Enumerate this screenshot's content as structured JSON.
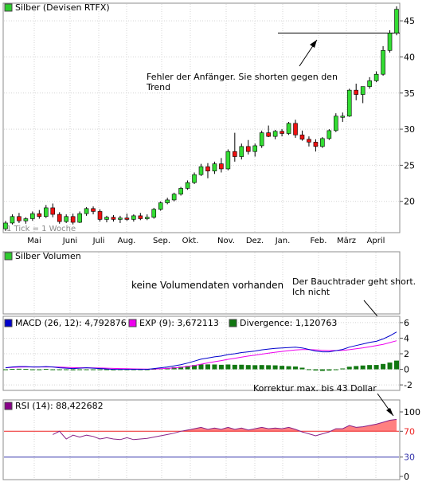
{
  "price_panel": {
    "legend_label": "Silber (Devisen RTFX)",
    "legend_color": "#2ecc2e",
    "tick_note": "1 Tick = 1 Woche",
    "y_ticks": [
      "45",
      "40",
      "35",
      "30",
      "25",
      "20"
    ],
    "annotation": "Fehler der Anfänger. Sie shorten gegen den Trend"
  },
  "volume_panel": {
    "legend_label": "Silber Volumen",
    "legend_color": "#2ecc2e",
    "no_data_text": "keine Volumendaten vorhanden",
    "annotation": "Der Bauchtrader geht short. Ich nicht"
  },
  "macd_panel": {
    "legend": [
      {
        "label": "MACD (26, 12): 4,792876",
        "color": "#0000cc"
      },
      {
        "label": "EXP (9): 3,672113",
        "color": "#ee00ee"
      },
      {
        "label": "Divergence: 1,120763",
        "color": "#117711"
      }
    ],
    "y_ticks": [
      "6",
      "4",
      "2",
      "0",
      "-2"
    ]
  },
  "rsi_panel": {
    "legend_label": "RSI (14): 88,422682",
    "legend_color": "#880088",
    "annotation": "Korrektur max. bis 43 Dollar",
    "y_ticks": [
      "100",
      "70",
      "30",
      "0"
    ]
  },
  "x_axis": {
    "months": [
      "Mai",
      "Juni",
      "Juli",
      "Aug.",
      "Sep.",
      "Okt.",
      "Nov.",
      "Dez.",
      "Jan.",
      "Feb.",
      "März",
      "April"
    ]
  },
  "chart_data": {
    "type": "candlestick",
    "periodicity": "weekly",
    "y_range": [
      16,
      47
    ],
    "colors": {
      "up": "#33dd33",
      "down": "#ee1111"
    },
    "candles": [
      {
        "o": 16.2,
        "h": 17.3,
        "l": 15.9,
        "c": 17.0
      },
      {
        "o": 17.0,
        "h": 18.2,
        "l": 16.8,
        "c": 17.9
      },
      {
        "o": 17.9,
        "h": 18.4,
        "l": 17.0,
        "c": 17.3
      },
      {
        "o": 17.3,
        "h": 17.8,
        "l": 16.9,
        "c": 17.6
      },
      {
        "o": 17.6,
        "h": 18.6,
        "l": 17.3,
        "c": 18.3
      },
      {
        "o": 18.3,
        "h": 18.8,
        "l": 17.6,
        "c": 17.9
      },
      {
        "o": 17.9,
        "h": 19.5,
        "l": 17.7,
        "c": 19.1
      },
      {
        "o": 19.1,
        "h": 19.7,
        "l": 17.8,
        "c": 18.2
      },
      {
        "o": 18.2,
        "h": 18.5,
        "l": 16.9,
        "c": 17.2
      },
      {
        "o": 17.2,
        "h": 18.2,
        "l": 17.0,
        "c": 17.9
      },
      {
        "o": 17.9,
        "h": 18.3,
        "l": 16.8,
        "c": 17.1
      },
      {
        "o": 17.1,
        "h": 18.6,
        "l": 17.0,
        "c": 18.3
      },
      {
        "o": 18.3,
        "h": 19.2,
        "l": 18.0,
        "c": 19.0
      },
      {
        "o": 19.0,
        "h": 19.3,
        "l": 18.2,
        "c": 18.6
      },
      {
        "o": 18.6,
        "h": 18.9,
        "l": 17.2,
        "c": 17.5
      },
      {
        "o": 17.5,
        "h": 18.0,
        "l": 17.1,
        "c": 17.8
      },
      {
        "o": 17.8,
        "h": 18.1,
        "l": 17.2,
        "c": 17.5
      },
      {
        "o": 17.5,
        "h": 18.0,
        "l": 17.0,
        "c": 17.7
      },
      {
        "o": 17.7,
        "h": 18.3,
        "l": 17.3,
        "c": 17.5
      },
      {
        "o": 17.5,
        "h": 18.2,
        "l": 17.2,
        "c": 18.0
      },
      {
        "o": 18.0,
        "h": 18.4,
        "l": 17.4,
        "c": 17.6
      },
      {
        "o": 17.6,
        "h": 18.2,
        "l": 17.4,
        "c": 17.8
      },
      {
        "o": 17.8,
        "h": 19.1,
        "l": 17.6,
        "c": 18.9
      },
      {
        "o": 18.9,
        "h": 20.0,
        "l": 18.7,
        "c": 19.8
      },
      {
        "o": 19.8,
        "h": 20.5,
        "l": 19.6,
        "c": 20.2
      },
      {
        "o": 20.2,
        "h": 21.2,
        "l": 20.0,
        "c": 21.0
      },
      {
        "o": 21.0,
        "h": 22.0,
        "l": 20.8,
        "c": 21.8
      },
      {
        "o": 21.8,
        "h": 22.9,
        "l": 21.6,
        "c": 22.6
      },
      {
        "o": 22.6,
        "h": 24.0,
        "l": 22.4,
        "c": 23.7
      },
      {
        "o": 23.7,
        "h": 25.2,
        "l": 23.5,
        "c": 24.8
      },
      {
        "o": 24.8,
        "h": 25.3,
        "l": 23.2,
        "c": 24.2
      },
      {
        "o": 24.2,
        "h": 25.5,
        "l": 23.8,
        "c": 25.2
      },
      {
        "o": 25.2,
        "h": 26.0,
        "l": 24.0,
        "c": 24.5
      },
      {
        "o": 24.5,
        "h": 27.2,
        "l": 24.3,
        "c": 26.9
      },
      {
        "o": 26.9,
        "h": 29.5,
        "l": 25.5,
        "c": 26.2
      },
      {
        "o": 26.2,
        "h": 28.0,
        "l": 25.8,
        "c": 27.6
      },
      {
        "o": 27.6,
        "h": 28.5,
        "l": 26.5,
        "c": 26.9
      },
      {
        "o": 26.9,
        "h": 28.0,
        "l": 26.2,
        "c": 27.7
      },
      {
        "o": 27.7,
        "h": 29.8,
        "l": 27.4,
        "c": 29.5
      },
      {
        "o": 29.5,
        "h": 30.5,
        "l": 28.9,
        "c": 29.0
      },
      {
        "o": 29.0,
        "h": 29.9,
        "l": 28.6,
        "c": 29.7
      },
      {
        "o": 29.7,
        "h": 30.0,
        "l": 29.0,
        "c": 29.4
      },
      {
        "o": 29.4,
        "h": 31.0,
        "l": 29.2,
        "c": 30.8
      },
      {
        "o": 30.8,
        "h": 31.3,
        "l": 28.8,
        "c": 29.2
      },
      {
        "o": 29.2,
        "h": 29.8,
        "l": 28.4,
        "c": 28.6
      },
      {
        "o": 28.6,
        "h": 29.0,
        "l": 27.6,
        "c": 28.2
      },
      {
        "o": 28.2,
        "h": 28.6,
        "l": 26.9,
        "c": 27.6
      },
      {
        "o": 27.6,
        "h": 28.9,
        "l": 27.4,
        "c": 28.7
      },
      {
        "o": 28.7,
        "h": 30.0,
        "l": 28.5,
        "c": 29.8
      },
      {
        "o": 29.8,
        "h": 32.2,
        "l": 29.6,
        "c": 31.8
      },
      {
        "o": 31.8,
        "h": 32.3,
        "l": 31.0,
        "c": 31.8
      },
      {
        "o": 31.8,
        "h": 35.6,
        "l": 31.7,
        "c": 35.4
      },
      {
        "o": 35.4,
        "h": 36.3,
        "l": 34.0,
        "c": 34.8
      },
      {
        "o": 34.8,
        "h": 35.6,
        "l": 33.6,
        "c": 35.9
      },
      {
        "o": 35.9,
        "h": 37.2,
        "l": 35.6,
        "c": 36.7
      },
      {
        "o": 36.7,
        "h": 38.0,
        "l": 36.5,
        "c": 37.6
      },
      {
        "o": 37.6,
        "h": 41.5,
        "l": 37.4,
        "c": 40.9
      },
      {
        "o": 40.9,
        "h": 43.7,
        "l": 40.6,
        "c": 43.3
      },
      {
        "o": 43.3,
        "h": 47.0,
        "l": 43.0,
        "c": 46.6
      }
    ],
    "macd": {
      "y_range": [
        -2.5,
        6.5
      ],
      "macd_line": [
        0.2,
        0.3,
        0.35,
        0.35,
        0.3,
        0.3,
        0.35,
        0.3,
        0.2,
        0.15,
        0.1,
        0.15,
        0.2,
        0.15,
        0.1,
        0.05,
        0.0,
        0.0,
        0.0,
        0.0,
        0.0,
        0.0,
        0.1,
        0.2,
        0.3,
        0.45,
        0.6,
        0.8,
        1.05,
        1.3,
        1.45,
        1.6,
        1.7,
        1.9,
        2.0,
        2.15,
        2.25,
        2.35,
        2.5,
        2.6,
        2.7,
        2.75,
        2.8,
        2.85,
        2.75,
        2.55,
        2.35,
        2.25,
        2.25,
        2.4,
        2.55,
        2.85,
        3.05,
        3.25,
        3.45,
        3.6,
        3.9,
        4.3,
        4.79
      ],
      "signal_line": [
        0.2,
        0.25,
        0.28,
        0.3,
        0.3,
        0.3,
        0.3,
        0.3,
        0.28,
        0.25,
        0.22,
        0.2,
        0.2,
        0.19,
        0.17,
        0.15,
        0.12,
        0.1,
        0.08,
        0.06,
        0.05,
        0.04,
        0.05,
        0.08,
        0.12,
        0.18,
        0.26,
        0.36,
        0.5,
        0.66,
        0.82,
        0.98,
        1.12,
        1.28,
        1.42,
        1.56,
        1.7,
        1.82,
        1.95,
        2.07,
        2.19,
        2.3,
        2.4,
        2.49,
        2.54,
        2.54,
        2.5,
        2.45,
        2.41,
        2.41,
        2.44,
        2.52,
        2.63,
        2.76,
        2.9,
        3.04,
        3.21,
        3.43,
        3.67
      ],
      "divergence": [
        0.0,
        0.05,
        0.07,
        0.05,
        0.0,
        0.0,
        0.05,
        0.0,
        -0.08,
        -0.1,
        -0.12,
        -0.05,
        0.0,
        -0.04,
        -0.07,
        -0.1,
        -0.12,
        -0.1,
        -0.08,
        -0.06,
        -0.05,
        -0.04,
        0.05,
        0.12,
        0.18,
        0.27,
        0.34,
        0.44,
        0.55,
        0.64,
        0.63,
        0.62,
        0.58,
        0.62,
        0.58,
        0.59,
        0.55,
        0.53,
        0.55,
        0.53,
        0.51,
        0.45,
        0.4,
        0.36,
        0.21,
        0.01,
        -0.15,
        -0.2,
        -0.16,
        -0.01,
        0.11,
        0.33,
        0.42,
        0.49,
        0.55,
        0.56,
        0.69,
        0.87,
        1.12
      ]
    },
    "rsi": {
      "y_range": [
        0,
        100
      ],
      "overbought": 70,
      "oversold": 30,
      "values": [
        null,
        null,
        null,
        null,
        null,
        null,
        null,
        65,
        70,
        58,
        64,
        61,
        64,
        62,
        58,
        60,
        58,
        57,
        60,
        57,
        58,
        59,
        61,
        63,
        65,
        67,
        70,
        72,
        74,
        76,
        73,
        75,
        73,
        76,
        73,
        75,
        72,
        74,
        76,
        74,
        75,
        74,
        76,
        73,
        69,
        66,
        63,
        66,
        69,
        74,
        74,
        79,
        76,
        77,
        79,
        81,
        84,
        87,
        88.4
      ]
    }
  }
}
